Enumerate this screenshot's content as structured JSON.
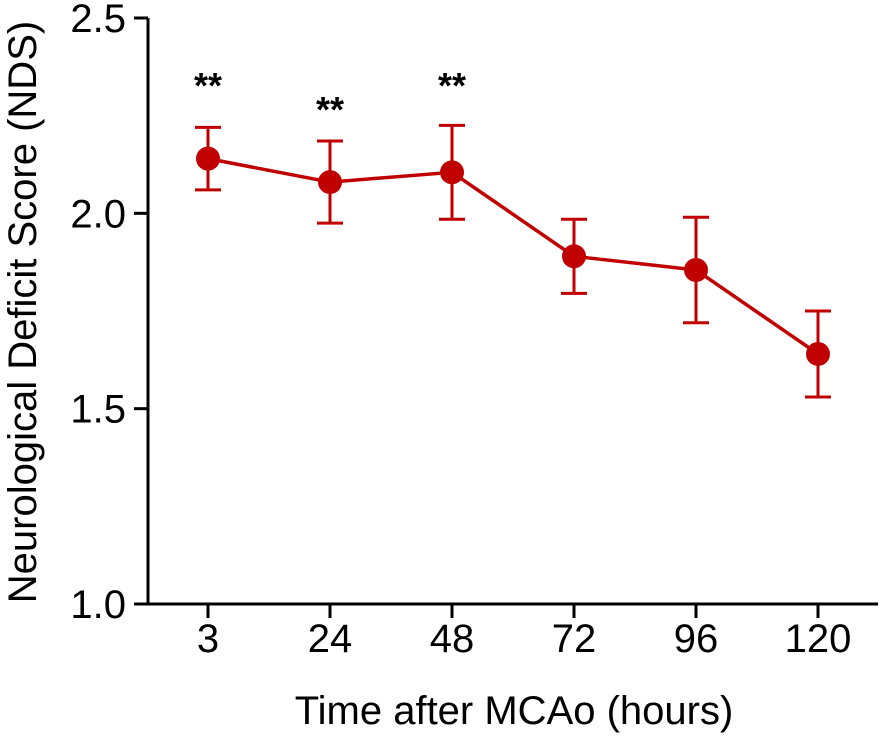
{
  "chart_data": {
    "type": "line",
    "title": "",
    "xlabel": "Time after MCAo (hours)",
    "ylabel": "Neurological Deficit Score (NDS)",
    "ylim": [
      1.0,
      2.5
    ],
    "yticks": [
      1.0,
      1.5,
      2.0,
      2.5
    ],
    "ytick_labels": [
      "1.0",
      "1.5",
      "2.0",
      "2.5"
    ],
    "categories": [
      "3",
      "24",
      "48",
      "72",
      "96",
      "120"
    ],
    "series": [
      {
        "name": "NDS",
        "color": "#c00000",
        "values": [
          2.14,
          2.08,
          2.105,
          1.89,
          1.855,
          1.64
        ],
        "error": [
          0.08,
          0.105,
          0.12,
          0.095,
          0.135,
          0.11
        ]
      }
    ],
    "annotations": [
      "**",
      "**",
      "**",
      "",
      "",
      ""
    ]
  }
}
